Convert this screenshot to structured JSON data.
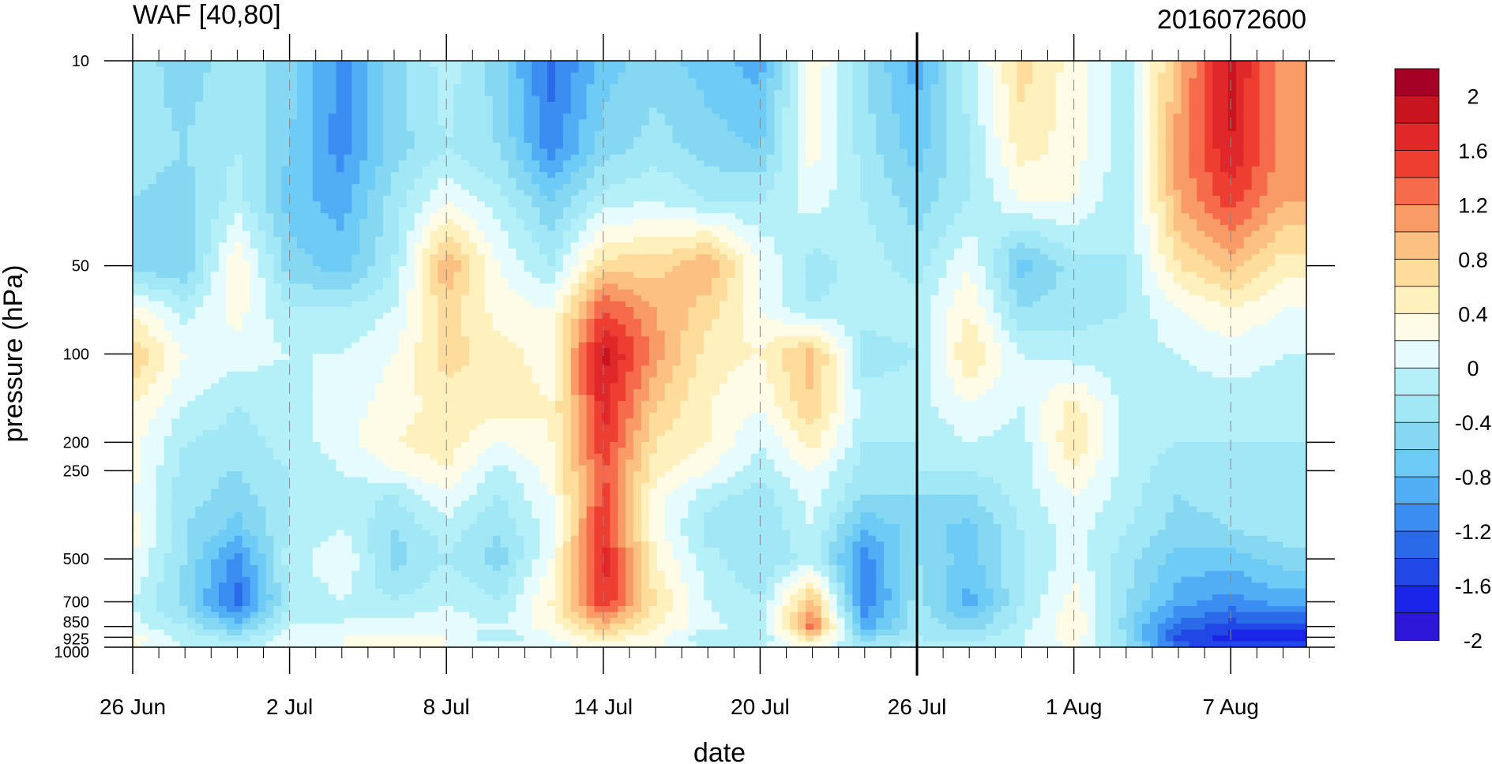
{
  "chart_data": {
    "type": "heatmap",
    "title_left": "WAF [40,80]",
    "title_right": "2016072600",
    "xlabel": "date",
    "ylabel": "pressure (hPa)",
    "x_tick_labels": [
      "26 Jun",
      "2 Jul",
      "8 Jul",
      "14 Jul",
      "20 Jul",
      "26 Jul",
      "1 Aug",
      "7 Aug"
    ],
    "y_tick_labels": [
      "10",
      "50",
      "100",
      "200",
      "250",
      "500",
      "700",
      "850",
      "925",
      "1000"
    ],
    "y_scale": "log",
    "ylim": [
      1000,
      10
    ],
    "xlim_days_from_26Jun": [
      0,
      45
    ],
    "marker_date": "26 Jul",
    "colorbar": {
      "labels": [
        "2",
        "1.6",
        "1.2",
        "0.8",
        "0.4",
        "0",
        "-0.4",
        "-0.8",
        "-1.2",
        "-1.6",
        "-2"
      ],
      "colors": [
        "#a50026",
        "#c7141f",
        "#e0282a",
        "#ee3e32",
        "#f56b4c",
        "#f99b67",
        "#fcc182",
        "#fedc9b",
        "#fff1bd",
        "#fefbe6",
        "#e6fbfd",
        "#b5f0f9",
        "#a2e7f5",
        "#86d8f2",
        "#6ecbf6",
        "#51aef5",
        "#3c8df1",
        "#2a6ae8",
        "#2147e6",
        "#1b25ea",
        "#2e16d7"
      ]
    },
    "field": {
      "date_columns": [
        "26 Jun",
        "28 Jun",
        "30 Jun",
        "2 Jul",
        "4 Jul",
        "6 Jul",
        "8 Jul",
        "10 Jul",
        "12 Jul",
        "14 Jul",
        "16 Jul",
        "18 Jul",
        "20 Jul",
        "22 Jul",
        "24 Jul",
        "26 Jul",
        "28 Jul",
        "30 Jul",
        "1 Aug",
        "3 Aug",
        "5 Aug",
        "7 Aug",
        "9 Aug"
      ],
      "levels_hPa": [
        10,
        20,
        30,
        50,
        70,
        100,
        150,
        200,
        250,
        300,
        400,
        500,
        700,
        850,
        925,
        1000
      ],
      "values": [
        [
          -0.4,
          -0.6,
          -0.4,
          -0.6,
          -1.2,
          -0.6,
          -0.2,
          -0.6,
          -1.4,
          -0.8,
          -0.6,
          -0.8,
          -1.0,
          0.3,
          -0.5,
          -1.0,
          -0.2,
          0.6,
          0.2,
          -0.2,
          0.8,
          1.8,
          0.9
        ],
        [
          -0.4,
          -0.5,
          -0.3,
          -0.7,
          -1.2,
          -0.6,
          -0.3,
          -0.5,
          -1.2,
          -0.6,
          -0.4,
          -0.6,
          -0.7,
          0.2,
          -0.4,
          -0.8,
          -0.3,
          0.4,
          0.2,
          -0.2,
          1.0,
          1.7,
          1.0
        ],
        [
          -0.5,
          -0.6,
          -0.2,
          -0.8,
          -1.0,
          -0.4,
          0.1,
          -0.2,
          -0.7,
          -0.2,
          -0.1,
          -0.3,
          -0.3,
          0.0,
          -0.3,
          -0.6,
          -0.3,
          0.1,
          0.1,
          -0.3,
          0.9,
          1.4,
          0.9
        ],
        [
          -0.6,
          -0.7,
          0.3,
          -0.6,
          -0.8,
          -0.3,
          0.9,
          0.1,
          -0.3,
          0.6,
          0.6,
          0.9,
          0.1,
          -0.4,
          -0.2,
          -0.4,
          0.1,
          -0.8,
          -0.4,
          -0.3,
          0.5,
          0.8,
          0.4
        ],
        [
          0.2,
          -0.2,
          0.2,
          -0.3,
          -0.3,
          -0.1,
          0.6,
          0.2,
          0.1,
          1.3,
          0.9,
          0.6,
          0.1,
          -0.3,
          -0.2,
          -0.2,
          0.3,
          -0.5,
          -0.4,
          -0.3,
          0.1,
          0.3,
          0.1
        ],
        [
          0.7,
          0.1,
          0.0,
          -0.1,
          -0.1,
          0.1,
          0.6,
          0.4,
          0.2,
          1.8,
          1.0,
          0.4,
          0.3,
          0.8,
          -0.4,
          -0.3,
          0.5,
          -0.1,
          -0.2,
          -0.2,
          -0.1,
          0.0,
          -0.1
        ],
        [
          0.3,
          -0.1,
          -0.3,
          -0.2,
          0.0,
          0.2,
          0.4,
          0.4,
          0.3,
          1.6,
          0.7,
          0.3,
          0.1,
          0.7,
          -0.2,
          -0.2,
          0.1,
          -0.1,
          0.4,
          -0.2,
          -0.2,
          -0.2,
          -0.2
        ],
        [
          0.2,
          -0.3,
          -0.4,
          -0.2,
          0.0,
          0.3,
          0.4,
          0.1,
          0.3,
          1.5,
          0.5,
          0.3,
          -0.1,
          0.4,
          -0.3,
          -0.3,
          -0.1,
          -0.2,
          0.5,
          -0.2,
          -0.3,
          -0.3,
          -0.3
        ],
        [
          0.2,
          -0.4,
          -0.5,
          -0.3,
          -0.1,
          0.1,
          0.3,
          -0.2,
          0.2,
          1.3,
          0.4,
          0.1,
          -0.2,
          0.1,
          -0.4,
          -0.3,
          -0.3,
          -0.2,
          0.3,
          -0.2,
          -0.4,
          -0.3,
          -0.3
        ],
        [
          0.1,
          -0.4,
          -0.6,
          -0.3,
          -0.2,
          -0.3,
          0.1,
          -0.3,
          0.1,
          1.4,
          0.2,
          -0.2,
          -0.4,
          0.0,
          -0.5,
          -0.5,
          -0.5,
          -0.2,
          0.1,
          -0.2,
          -0.5,
          -0.4,
          -0.3
        ],
        [
          0.2,
          -0.5,
          -0.8,
          -0.3,
          -0.1,
          -0.5,
          -0.2,
          -0.5,
          0.0,
          1.5,
          0.2,
          -0.4,
          -0.5,
          -0.1,
          -0.9,
          -0.6,
          -0.8,
          -0.3,
          0.0,
          -0.3,
          -0.6,
          -0.5,
          -0.4
        ],
        [
          0.1,
          -0.5,
          -1.2,
          -0.2,
          0.1,
          -0.6,
          -0.3,
          -0.6,
          0.1,
          1.6,
          0.3,
          -0.2,
          -0.5,
          -0.2,
          -1.2,
          -0.5,
          -0.8,
          -0.3,
          0.0,
          -0.4,
          -0.8,
          -0.8,
          -0.6
        ],
        [
          -0.1,
          -0.6,
          -1.4,
          -0.3,
          -0.1,
          -0.3,
          -0.1,
          -0.3,
          0.3,
          1.5,
          0.5,
          -0.1,
          -0.3,
          0.8,
          -1.3,
          -0.4,
          -1.0,
          -0.3,
          0.2,
          -0.5,
          -1.0,
          -1.2,
          -1.0
        ],
        [
          0.0,
          -0.3,
          -0.8,
          -0.1,
          -0.1,
          0.0,
          0.0,
          -0.1,
          0.2,
          0.8,
          0.3,
          0.0,
          -0.3,
          1.2,
          -1.0,
          -0.4,
          -0.6,
          -0.2,
          0.3,
          -0.6,
          -1.4,
          -1.6,
          -1.6
        ],
        [
          0.2,
          -0.2,
          -0.4,
          0.0,
          0.1,
          0.1,
          0.1,
          -0.3,
          0.1,
          0.4,
          0.2,
          -0.3,
          -0.3,
          0.6,
          -0.6,
          -0.3,
          -0.4,
          -0.1,
          0.2,
          -0.5,
          -1.6,
          -1.8,
          -1.8
        ],
        [
          0.1,
          -0.1,
          -0.2,
          0.0,
          0.1,
          0.2,
          0.1,
          0.0,
          0.0,
          0.2,
          0.1,
          -0.1,
          -0.1,
          0.2,
          -0.4,
          -0.2,
          -0.2,
          -0.1,
          0.1,
          -0.4,
          -1.4,
          -1.6,
          -1.6
        ]
      ]
    }
  }
}
